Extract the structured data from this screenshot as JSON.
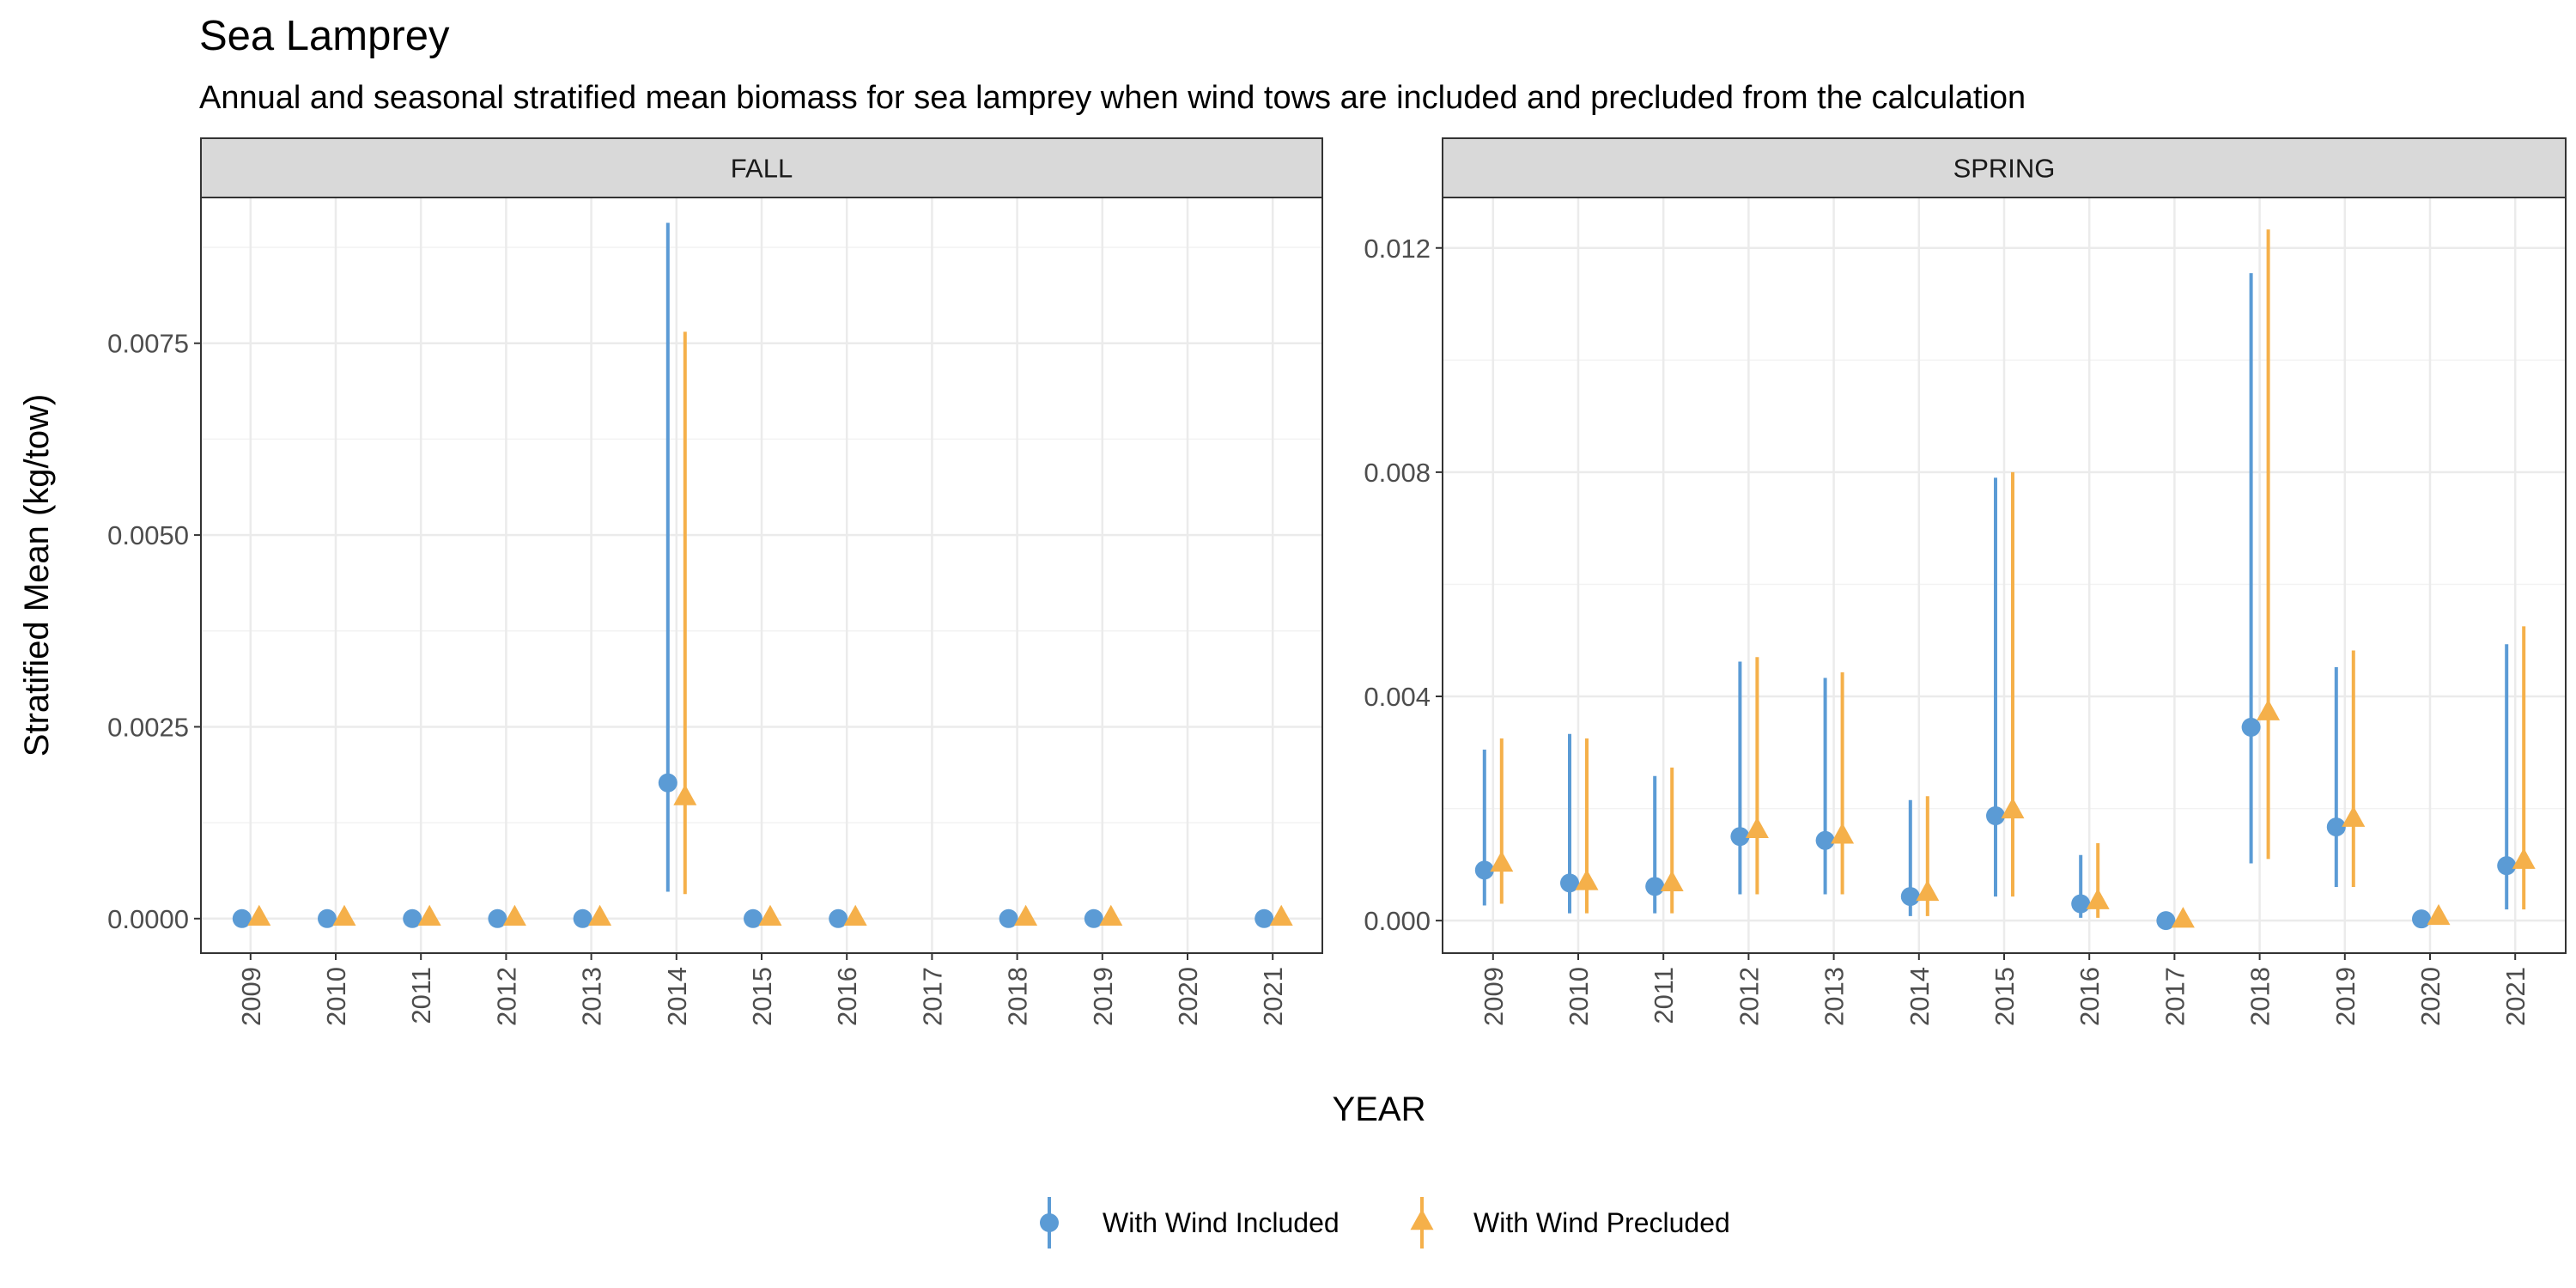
{
  "title": "Sea Lamprey",
  "subtitle": "Annual and seasonal stratified mean biomass for sea lamprey when wind tows are included and precluded from the calculation",
  "ylabel": "Stratified Mean (kg/tow)",
  "xlabel": "YEAR",
  "colors": {
    "included": "#5b9bd5",
    "precluded": "#f5b04a"
  },
  "legend": {
    "position": "bottom",
    "items": [
      {
        "key": "included",
        "label": "With Wind Included",
        "shape": "circle"
      },
      {
        "key": "precluded",
        "label": "With Wind Precluded",
        "shape": "triangle"
      }
    ]
  },
  "chart_data": [
    {
      "type": "scatter",
      "panel": "FALL",
      "categories": [
        "2009",
        "2010",
        "2011",
        "2012",
        "2013",
        "2014",
        "2015",
        "2016",
        "2017",
        "2018",
        "2019",
        "2020",
        "2021"
      ],
      "ylim": [
        -0.00045,
        0.0094
      ],
      "yticks": [
        0,
        0.0025,
        0.005,
        0.0075
      ],
      "ytick_labels": [
        "0.0000",
        "0.0025",
        "0.0050",
        "0.0075"
      ],
      "grid": true,
      "series": [
        {
          "name": "With Wind Included",
          "key": "included",
          "points": [
            {
              "x": "2009",
              "y": 0,
              "lo": 0,
              "hi": 0
            },
            {
              "x": "2010",
              "y": 0,
              "lo": 0,
              "hi": 0
            },
            {
              "x": "2011",
              "y": 0,
              "lo": 0,
              "hi": 0
            },
            {
              "x": "2012",
              "y": 0,
              "lo": 0,
              "hi": 0
            },
            {
              "x": "2013",
              "y": 0,
              "lo": 0,
              "hi": 0
            },
            {
              "x": "2014",
              "y": 0.00177,
              "lo": 0.00035,
              "hi": 0.00907
            },
            {
              "x": "2015",
              "y": 0,
              "lo": 0,
              "hi": 0
            },
            {
              "x": "2016",
              "y": 0,
              "lo": 0,
              "hi": 0
            },
            {
              "x": "2018",
              "y": 0,
              "lo": 0,
              "hi": 0
            },
            {
              "x": "2019",
              "y": 0,
              "lo": 0,
              "hi": 0
            },
            {
              "x": "2021",
              "y": 0,
              "lo": 0,
              "hi": 0
            }
          ]
        },
        {
          "name": "With Wind Precluded",
          "key": "precluded",
          "points": [
            {
              "x": "2009",
              "y": 0,
              "lo": 0,
              "hi": 0
            },
            {
              "x": "2010",
              "y": 0,
              "lo": 0,
              "hi": 0
            },
            {
              "x": "2011",
              "y": 0,
              "lo": 0,
              "hi": 0
            },
            {
              "x": "2012",
              "y": 0,
              "lo": 0,
              "hi": 0
            },
            {
              "x": "2013",
              "y": 0,
              "lo": 0,
              "hi": 0
            },
            {
              "x": "2014",
              "y": 0.00157,
              "lo": 0.00032,
              "hi": 0.00765
            },
            {
              "x": "2015",
              "y": 0,
              "lo": 0,
              "hi": 0
            },
            {
              "x": "2016",
              "y": 0,
              "lo": 0,
              "hi": 0
            },
            {
              "x": "2018",
              "y": 0,
              "lo": 0,
              "hi": 0
            },
            {
              "x": "2019",
              "y": 0,
              "lo": 0,
              "hi": 0
            },
            {
              "x": "2021",
              "y": 0,
              "lo": 0,
              "hi": 0
            }
          ]
        }
      ]
    },
    {
      "type": "scatter",
      "panel": "SPRING",
      "categories": [
        "2009",
        "2010",
        "2011",
        "2012",
        "2013",
        "2014",
        "2015",
        "2016",
        "2017",
        "2018",
        "2019",
        "2020",
        "2021"
      ],
      "ylim": [
        -0.00058,
        0.0129
      ],
      "yticks": [
        0,
        0.004,
        0.008,
        0.012
      ],
      "ytick_labels": [
        "0.000",
        "0.004",
        "0.008",
        "0.012"
      ],
      "grid": true,
      "series": [
        {
          "name": "With Wind Included",
          "key": "included",
          "points": [
            {
              "x": "2009",
              "y": 0.0009,
              "lo": 0.00027,
              "hi": 0.00305
            },
            {
              "x": "2010",
              "y": 0.00067,
              "lo": 0.00013,
              "hi": 0.00333
            },
            {
              "x": "2011",
              "y": 0.00061,
              "lo": 0.00013,
              "hi": 0.00258
            },
            {
              "x": "2012",
              "y": 0.0015,
              "lo": 0.00047,
              "hi": 0.00462
            },
            {
              "x": "2013",
              "y": 0.00143,
              "lo": 0.00047,
              "hi": 0.00433
            },
            {
              "x": "2014",
              "y": 0.00043,
              "lo": 8e-05,
              "hi": 0.00215
            },
            {
              "x": "2015",
              "y": 0.00187,
              "lo": 0.00043,
              "hi": 0.0079
            },
            {
              "x": "2016",
              "y": 0.0003,
              "lo": 5e-05,
              "hi": 0.00117
            },
            {
              "x": "2017",
              "y": 0.0,
              "lo": 0,
              "hi": 0
            },
            {
              "x": "2018",
              "y": 0.00345,
              "lo": 0.00102,
              "hi": 0.01155
            },
            {
              "x": "2019",
              "y": 0.00167,
              "lo": 0.0006,
              "hi": 0.00452
            },
            {
              "x": "2020",
              "y": 3e-05,
              "lo": 0,
              "hi": 5e-05
            },
            {
              "x": "2021",
              "y": 0.00098,
              "lo": 0.0002,
              "hi": 0.00493
            }
          ]
        },
        {
          "name": "With Wind Precluded",
          "key": "precluded",
          "points": [
            {
              "x": "2009",
              "y": 0.001,
              "lo": 0.0003,
              "hi": 0.00325
            },
            {
              "x": "2010",
              "y": 0.00067,
              "lo": 0.00013,
              "hi": 0.00325
            },
            {
              "x": "2011",
              "y": 0.00065,
              "lo": 0.00013,
              "hi": 0.00273
            },
            {
              "x": "2012",
              "y": 0.0016,
              "lo": 0.00047,
              "hi": 0.0047
            },
            {
              "x": "2013",
              "y": 0.0015,
              "lo": 0.00047,
              "hi": 0.00443
            },
            {
              "x": "2014",
              "y": 0.00048,
              "lo": 8e-05,
              "hi": 0.00222
            },
            {
              "x": "2015",
              "y": 0.00195,
              "lo": 0.00043,
              "hi": 0.008
            },
            {
              "x": "2016",
              "y": 0.00033,
              "lo": 5e-05,
              "hi": 0.00138
            },
            {
              "x": "2017",
              "y": 0.0,
              "lo": 0,
              "hi": 0
            },
            {
              "x": "2018",
              "y": 0.0037,
              "lo": 0.0011,
              "hi": 0.01233
            },
            {
              "x": "2019",
              "y": 0.0018,
              "lo": 0.0006,
              "hi": 0.00482
            },
            {
              "x": "2020",
              "y": 5e-05,
              "lo": 0,
              "hi": 7e-05
            },
            {
              "x": "2021",
              "y": 0.00105,
              "lo": 0.0002,
              "hi": 0.00525
            }
          ]
        }
      ]
    }
  ]
}
